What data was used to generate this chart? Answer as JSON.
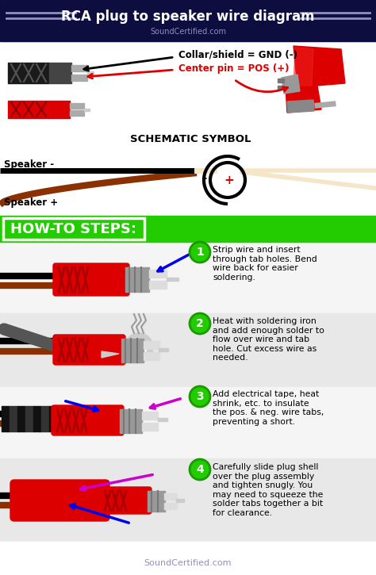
{
  "title": "RCA plug to speaker wire diagram",
  "subtitle": "SoundCertified.com",
  "footer": "SoundCertified.com",
  "bg_color": "#ffffff",
  "header_bg": "#0d0d40",
  "header_text_color": "#ffffff",
  "header_line_color": "#9090c0",
  "label1": "Collar/shield = GND (-)",
  "label2": "Center pin = POS (+)",
  "schematic_label": "SCHEMATIC SYMBOL",
  "speaker_neg": "Speaker -",
  "speaker_pos": "Speaker +",
  "howto_label": "HOW-TO STEPS:",
  "step1_text": "Strip wire and insert\nthrough tab holes. Bend\nwire back for easier\nsoldering.",
  "step2_text": "Heat with soldering iron\nand add enough solder to\nflow over wire and tab\nhole. Cut excess wire as\nneeded.",
  "step3_text": "Add electrical tape, heat\nshrink, etc. to insulate\nthe pos. & neg. wire tabs,\npreventing a short.",
  "step4_text": "Carefully slide plug shell\nover the plug assembly\nand tighten snugly. You\nmay need to squeeze the\nsolder tabs together a bit\nfor clearance.",
  "red": "#dd0000",
  "dark_red": "#990000",
  "green": "#22cc00",
  "green_dark": "#1a9900",
  "blue": "#0000ee",
  "magenta": "#cc00cc",
  "black": "#111111",
  "gray_dark": "#444444",
  "gray_mid": "#888888",
  "gray_light": "#bbbbbb",
  "cream": "#f5e6c8",
  "wire_brown": "#8B3000",
  "sec1_bg": "#ffffff",
  "sec2_bg": "#ffffff",
  "step1_bg": "#f5f5f5",
  "step2_bg": "#e8e8e8",
  "step3_bg": "#f5f5f5",
  "step4_bg": "#e8e8e8"
}
